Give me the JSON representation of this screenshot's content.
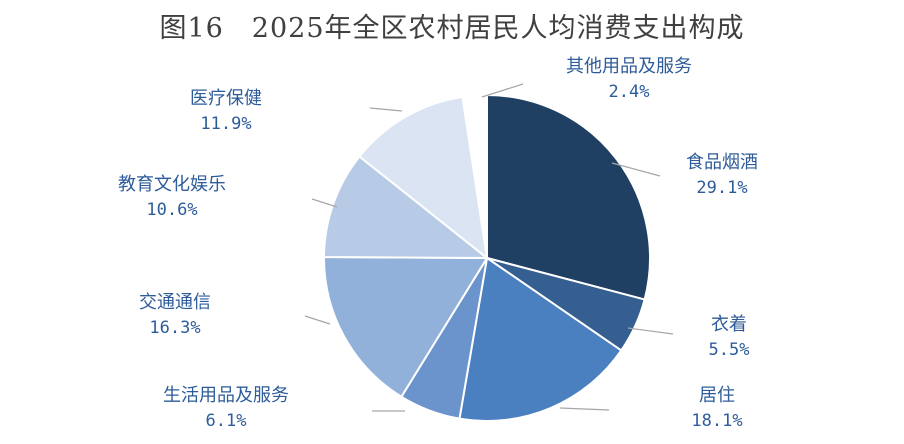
{
  "chart_data": {
    "type": "pie",
    "title": "图16　2025年全区农村居民人均消费支出构成",
    "slices": [
      {
        "name": "食品烟酒",
        "value": 29.1,
        "label": "29.1%",
        "color": "#1f3f63"
      },
      {
        "name": "衣着",
        "value": 5.5,
        "label": "5.5%",
        "color": "#355f91"
      },
      {
        "name": "居住",
        "value": 18.1,
        "label": "18.1%",
        "color": "#4a7fc0"
      },
      {
        "name": "生活用品及服务",
        "value": 6.1,
        "label": "6.1%",
        "color": "#6b93cc"
      },
      {
        "name": "交通通信",
        "value": 16.3,
        "label": "16.3%",
        "color": "#91b0da"
      },
      {
        "name": "教育文化娱乐",
        "value": 10.6,
        "label": "10.6%",
        "color": "#b8cbe6"
      },
      {
        "name": "医疗保健",
        "value": 11.9,
        "label": "11.9%",
        "color": "#dae4f2"
      },
      {
        "name": "其他用品及服务",
        "value": 2.4,
        "label": "2.4%",
        "color": "#ffffff"
      }
    ],
    "start_angle": "12 o'clock",
    "direction": "clockwise",
    "legend": "none (labels beside slices with leader lines)"
  }
}
